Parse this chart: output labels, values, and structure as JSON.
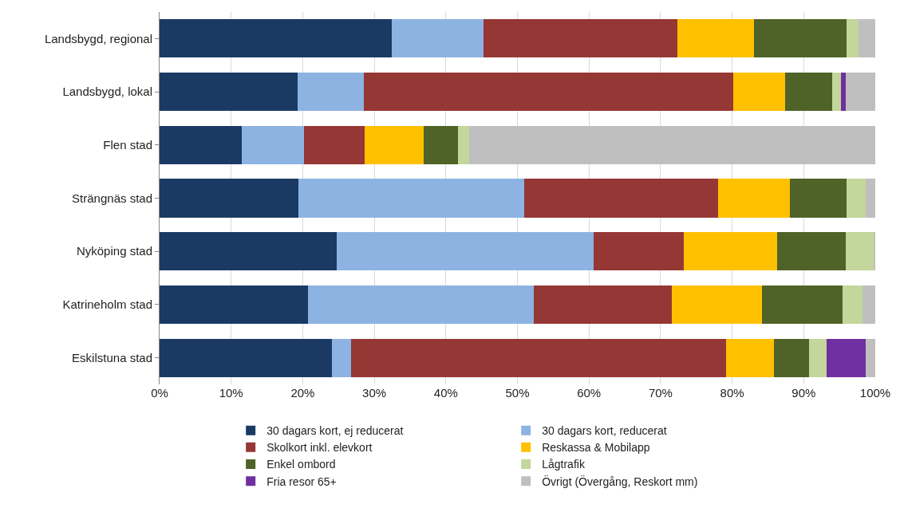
{
  "chart_data": {
    "type": "bar",
    "orientation": "horizontal",
    "stacked": true,
    "categories": [
      "Landsbygd, regional",
      "Landsbygd, lokal",
      "Flen stad",
      "Strängnäs stad",
      "Nyköping stad",
      "Katrineholm stad",
      "Eskilstuna stad"
    ],
    "series": [
      {
        "name": "30 dagars kort, ej reducerat",
        "color": "#1b3a63",
        "values": [
          32.4,
          19.3,
          11.5,
          19.4,
          24.7,
          20.7,
          24.1
        ]
      },
      {
        "name": "30 dagars kort, reducerat",
        "color": "#8db3e2",
        "values": [
          12.9,
          9.2,
          8.7,
          31.6,
          36.0,
          31.6,
          2.7
        ]
      },
      {
        "name": "Skolkort inkl. elevkort",
        "color": "#953735",
        "values": [
          27.1,
          51.6,
          8.5,
          27.0,
          12.5,
          19.3,
          52.3
        ]
      },
      {
        "name": "Reskassa & Mobilapp",
        "color": "#ffc000",
        "values": [
          10.6,
          7.3,
          8.2,
          10.1,
          13.1,
          12.6,
          6.7
        ]
      },
      {
        "name": "Enkel ombord",
        "color": "#4f6228",
        "values": [
          13.0,
          6.6,
          4.8,
          7.9,
          9.6,
          11.2,
          4.9
        ]
      },
      {
        "name": "Lågtrafik",
        "color": "#c3d69b",
        "values": [
          1.7,
          1.2,
          1.5,
          2.7,
          3.9,
          2.8,
          2.5
        ]
      },
      {
        "name": "Fria resor 65+",
        "color": "#7030a0",
        "values": [
          0,
          0.7,
          0,
          0,
          0,
          0,
          5.5
        ]
      },
      {
        "name": "Övrigt (Övergång, Reskort mm)",
        "color": "#bfbfbf",
        "values": [
          2.3,
          4.1,
          56.8,
          1.3,
          0.2,
          1.8,
          1.3
        ]
      }
    ],
    "xlim": [
      0,
      100
    ],
    "xticks": [
      {
        "value": 0,
        "label": "0%"
      },
      {
        "value": 10,
        "label": "10%"
      },
      {
        "value": 20,
        "label": "20%"
      },
      {
        "value": 30,
        "label": "30%"
      },
      {
        "value": 40,
        "label": "40%"
      },
      {
        "value": 50,
        "label": "50%"
      },
      {
        "value": 60,
        "label": "60%"
      },
      {
        "value": 70,
        "label": "70%"
      },
      {
        "value": 80,
        "label": "80%"
      },
      {
        "value": 90,
        "label": "90%"
      },
      {
        "value": 100,
        "label": "100%"
      }
    ],
    "grid": "x",
    "legend": "bottom"
  }
}
